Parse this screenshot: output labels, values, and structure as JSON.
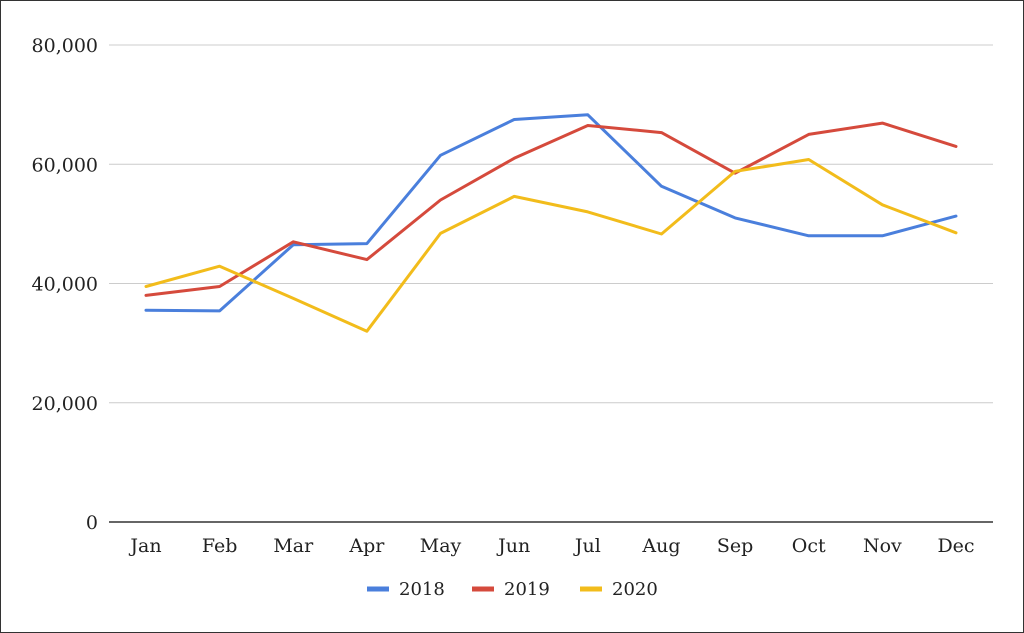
{
  "chart_data": {
    "type": "line",
    "title": "",
    "xlabel": "",
    "ylabel": "",
    "categories": [
      "Jan",
      "Feb",
      "Mar",
      "Apr",
      "May",
      "Jun",
      "Jul",
      "Aug",
      "Sep",
      "Oct",
      "Nov",
      "Dec"
    ],
    "ylim": [
      0,
      80000
    ],
    "yticks": [
      0,
      20000,
      40000,
      60000,
      80000
    ],
    "ytick_labels": [
      "0",
      "20,000",
      "40,000",
      "60,000",
      "80,000"
    ],
    "grid": true,
    "legend_position": "bottom",
    "series": [
      {
        "name": "2018",
        "color": "#4a7fdc",
        "values": [
          35500,
          35400,
          46500,
          46700,
          61500,
          67500,
          68300,
          56300,
          51000,
          48000,
          48000,
          51300
        ]
      },
      {
        "name": "2019",
        "color": "#d54a3c",
        "values": [
          38000,
          39500,
          47000,
          44000,
          54000,
          61000,
          66500,
          65300,
          58500,
          65000,
          66900,
          63000
        ]
      },
      {
        "name": "2020",
        "color": "#f2bc1b",
        "values": [
          39500,
          42900,
          37500,
          32000,
          48400,
          54600,
          52000,
          48300,
          58800,
          60800,
          53200,
          48500
        ]
      }
    ]
  }
}
